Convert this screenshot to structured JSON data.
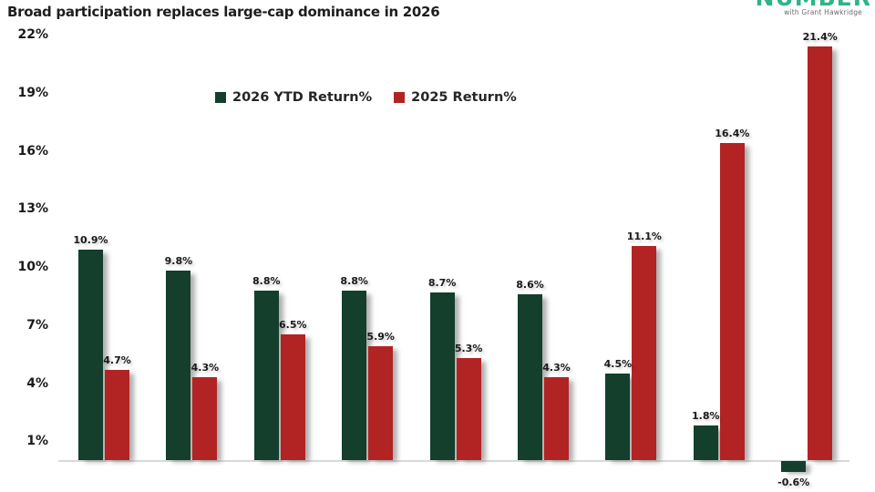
{
  "header": {
    "logo": {
      "wordmark": "NUMBER",
      "tagline": "with Grant Hawkridge",
      "color": "#2db583"
    }
  },
  "chart_data": {
    "type": "bar",
    "title": "Broad participation replaces large-cap dominance in 2026",
    "categories": [
      "",
      "",
      "",
      "",
      "",
      "",
      "",
      "",
      ""
    ],
    "series": [
      {
        "name": "2026 YTD Return%",
        "color": "#133f2c",
        "values": [
          10.9,
          9.8,
          8.8,
          8.8,
          8.7,
          8.6,
          4.5,
          1.8,
          -0.6
        ]
      },
      {
        "name": "2025 Return%",
        "color": "#b22323",
        "values": [
          4.7,
          4.3,
          6.5,
          5.9,
          5.3,
          4.3,
          11.1,
          16.4,
          21.4
        ]
      }
    ],
    "y_ticks": [
      "22%",
      "19%",
      "16%",
      "13%",
      "10%",
      "7%",
      "4%",
      "1%"
    ],
    "ylim": [
      -1,
      22.5
    ],
    "grid": false,
    "legend_position": "top-center",
    "data_labels": true,
    "axis_line_color": "#d9d9d9"
  }
}
